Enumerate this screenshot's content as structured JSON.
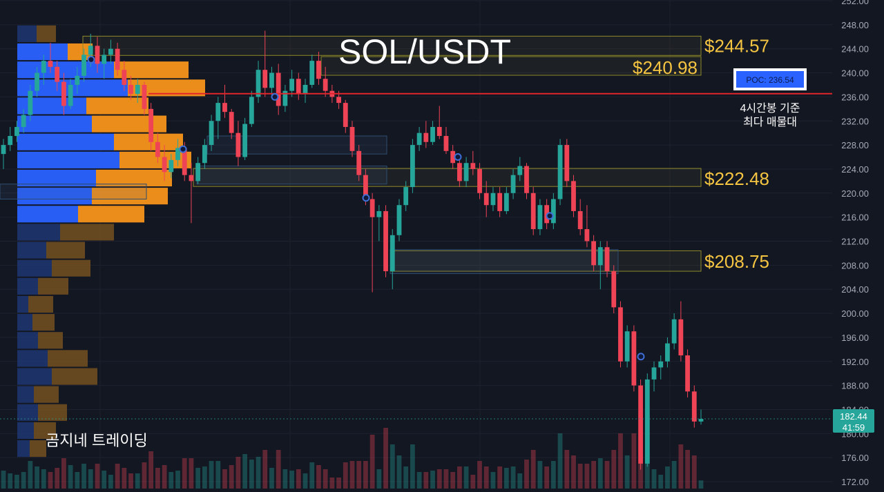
{
  "chart_data": {
    "type": "candlestick",
    "title": "SOL/USDT",
    "watermark": "곰지네 트레이딩",
    "y_axis": {
      "min": 172.0,
      "max": 252.0,
      "step": 4.0,
      "tick_labels": [
        "172.00",
        "176.00",
        "180.00",
        "184.00",
        "188.00",
        "192.00",
        "196.00",
        "200.00",
        "204.00",
        "208.00",
        "212.00",
        "216.00",
        "220.00",
        "224.00",
        "228.00",
        "232.00",
        "236.00",
        "240.00",
        "244.00",
        "248.00",
        "252.00"
      ]
    },
    "current_price": {
      "value": 182.44,
      "label": "182.44",
      "countdown": "41:59",
      "color": "#26a69a"
    },
    "poc": {
      "value": 236.54,
      "label": "POC: 236.54",
      "note": [
        "4시간봉 기준",
        "최다 매물대"
      ],
      "line_color": "#e0262b"
    },
    "levels": [
      {
        "label": "$244.57",
        "low": 242.9,
        "high": 246.1
      },
      {
        "label": "$240.98",
        "low": 239.6,
        "high": 242.7
      },
      {
        "label": "$222.48",
        "low": 221.1,
        "high": 224.1
      },
      {
        "label": "$208.75",
        "low": 207.0,
        "high": 210.4
      }
    ],
    "volume_profile": [
      {
        "price": 246.5,
        "up": 28,
        "down": 28
      },
      {
        "price": 243.5,
        "up": 73,
        "down": 36
      },
      {
        "price": 240.5,
        "up": 140,
        "down": 108
      },
      {
        "price": 237.5,
        "up": 160,
        "down": 112
      },
      {
        "price": 234.5,
        "up": 100,
        "down": 90
      },
      {
        "price": 231.5,
        "up": 108,
        "down": 108
      },
      {
        "price": 228.5,
        "up": 140,
        "down": 100
      },
      {
        "price": 225.5,
        "up": 148,
        "down": 104
      },
      {
        "price": 222.5,
        "up": 114,
        "down": 110
      },
      {
        "price": 219.5,
        "up": 108,
        "down": 110
      },
      {
        "price": 216.5,
        "up": 88,
        "down": 96
      },
      {
        "price": 213.5,
        "up": 62,
        "down": 78
      },
      {
        "price": 210.5,
        "up": 42,
        "down": 56
      },
      {
        "price": 207.5,
        "up": 50,
        "down": 56
      },
      {
        "price": 204.5,
        "up": 30,
        "down": 44
      },
      {
        "price": 201.5,
        "up": 16,
        "down": 36
      },
      {
        "price": 198.5,
        "up": 22,
        "down": 32
      },
      {
        "price": 195.5,
        "up": 30,
        "down": 36
      },
      {
        "price": 192.5,
        "up": 44,
        "down": 58
      },
      {
        "price": 189.5,
        "up": 50,
        "down": 66
      },
      {
        "price": 186.5,
        "up": 24,
        "down": 36
      },
      {
        "price": 183.5,
        "up": 30,
        "down": 42
      },
      {
        "price": 180.5,
        "up": 24,
        "down": 32
      },
      {
        "price": 177.5,
        "up": 18,
        "down": 24
      }
    ],
    "candles": [
      {
        "o": 226.5,
        "h": 229.0,
        "l": 224.0,
        "c": 228.0
      },
      {
        "o": 228.0,
        "h": 231.0,
        "l": 227.0,
        "c": 229.5
      },
      {
        "o": 229.5,
        "h": 232.0,
        "l": 228.5,
        "c": 231.0
      },
      {
        "o": 231.0,
        "h": 234.0,
        "l": 230.0,
        "c": 233.0
      },
      {
        "o": 233.0,
        "h": 238.0,
        "l": 232.0,
        "c": 237.0
      },
      {
        "o": 237.0,
        "h": 241.0,
        "l": 236.0,
        "c": 240.0
      },
      {
        "o": 240.0,
        "h": 243.0,
        "l": 238.0,
        "c": 242.0
      },
      {
        "o": 242.0,
        "h": 245.0,
        "l": 240.0,
        "c": 241.0
      },
      {
        "o": 241.0,
        "h": 242.0,
        "l": 237.0,
        "c": 238.5
      },
      {
        "o": 238.5,
        "h": 240.0,
        "l": 233.0,
        "c": 234.5
      },
      {
        "o": 234.5,
        "h": 239.0,
        "l": 234.0,
        "c": 238.0
      },
      {
        "o": 238.0,
        "h": 241.0,
        "l": 236.5,
        "c": 239.5
      },
      {
        "o": 239.5,
        "h": 244.0,
        "l": 238.5,
        "c": 243.0
      },
      {
        "o": 243.0,
        "h": 246.5,
        "l": 241.0,
        "c": 244.5
      },
      {
        "o": 244.5,
        "h": 246.0,
        "l": 240.0,
        "c": 241.5
      },
      {
        "o": 241.5,
        "h": 244.0,
        "l": 239.0,
        "c": 243.0
      },
      {
        "o": 243.0,
        "h": 245.5,
        "l": 241.5,
        "c": 244.0
      },
      {
        "o": 244.0,
        "h": 245.0,
        "l": 239.5,
        "c": 240.5
      },
      {
        "o": 240.5,
        "h": 242.0,
        "l": 237.0,
        "c": 238.0
      },
      {
        "o": 238.0,
        "h": 239.5,
        "l": 235.5,
        "c": 236.5
      },
      {
        "o": 236.5,
        "h": 239.0,
        "l": 235.0,
        "c": 238.0
      },
      {
        "o": 238.0,
        "h": 238.5,
        "l": 233.0,
        "c": 234.0
      },
      {
        "o": 234.0,
        "h": 235.0,
        "l": 227.0,
        "c": 228.5
      },
      {
        "o": 228.5,
        "h": 230.0,
        "l": 225.0,
        "c": 226.0
      },
      {
        "o": 226.0,
        "h": 228.0,
        "l": 222.0,
        "c": 223.5
      },
      {
        "o": 223.5,
        "h": 226.5,
        "l": 222.5,
        "c": 225.5
      },
      {
        "o": 225.5,
        "h": 229.0,
        "l": 224.5,
        "c": 227.5
      },
      {
        "o": 227.5,
        "h": 228.5,
        "l": 222.0,
        "c": 223.0
      },
      {
        "o": 223.0,
        "h": 225.0,
        "l": 215.0,
        "c": 222.0
      },
      {
        "o": 222.0,
        "h": 226.0,
        "l": 221.5,
        "c": 225.0
      },
      {
        "o": 225.0,
        "h": 229.0,
        "l": 224.0,
        "c": 228.0
      },
      {
        "o": 228.0,
        "h": 233.0,
        "l": 227.0,
        "c": 232.0
      },
      {
        "o": 232.0,
        "h": 236.0,
        "l": 229.0,
        "c": 235.0
      },
      {
        "o": 235.0,
        "h": 238.0,
        "l": 232.5,
        "c": 233.5
      },
      {
        "o": 233.5,
        "h": 234.0,
        "l": 229.0,
        "c": 230.0
      },
      {
        "o": 230.0,
        "h": 232.0,
        "l": 224.5,
        "c": 226.0
      },
      {
        "o": 226.0,
        "h": 232.5,
        "l": 225.5,
        "c": 231.5
      },
      {
        "o": 231.5,
        "h": 237.0,
        "l": 231.0,
        "c": 236.0
      },
      {
        "o": 236.0,
        "h": 242.0,
        "l": 235.0,
        "c": 240.5
      },
      {
        "o": 240.5,
        "h": 247.0,
        "l": 236.0,
        "c": 237.5
      },
      {
        "o": 237.5,
        "h": 241.0,
        "l": 236.0,
        "c": 240.0
      },
      {
        "o": 240.0,
        "h": 241.5,
        "l": 233.0,
        "c": 234.5
      },
      {
        "o": 234.5,
        "h": 238.0,
        "l": 233.5,
        "c": 237.0
      },
      {
        "o": 237.0,
        "h": 240.5,
        "l": 236.0,
        "c": 239.0
      },
      {
        "o": 239.0,
        "h": 240.0,
        "l": 235.5,
        "c": 236.5
      },
      {
        "o": 236.5,
        "h": 239.0,
        "l": 235.0,
        "c": 238.0
      },
      {
        "o": 238.0,
        "h": 243.0,
        "l": 237.5,
        "c": 242.0
      },
      {
        "o": 242.0,
        "h": 243.5,
        "l": 238.0,
        "c": 239.0
      },
      {
        "o": 239.0,
        "h": 241.0,
        "l": 236.0,
        "c": 237.0
      },
      {
        "o": 237.0,
        "h": 238.0,
        "l": 235.0,
        "c": 236.0
      },
      {
        "o": 236.0,
        "h": 237.0,
        "l": 234.0,
        "c": 235.0
      },
      {
        "o": 235.0,
        "h": 235.5,
        "l": 230.0,
        "c": 231.0
      },
      {
        "o": 231.0,
        "h": 232.0,
        "l": 226.0,
        "c": 227.0
      },
      {
        "o": 227.0,
        "h": 228.0,
        "l": 222.0,
        "c": 223.0
      },
      {
        "o": 223.0,
        "h": 224.0,
        "l": 218.0,
        "c": 219.0
      },
      {
        "o": 219.0,
        "h": 220.0,
        "l": 203.5,
        "c": 216.0
      },
      {
        "o": 216.0,
        "h": 218.0,
        "l": 212.0,
        "c": 217.0
      },
      {
        "o": 217.0,
        "h": 218.0,
        "l": 206.0,
        "c": 207.0
      },
      {
        "o": 207.0,
        "h": 214.0,
        "l": 204.0,
        "c": 213.0
      },
      {
        "o": 213.0,
        "h": 219.0,
        "l": 212.0,
        "c": 218.0
      },
      {
        "o": 218.0,
        "h": 222.0,
        "l": 217.0,
        "c": 221.0
      },
      {
        "o": 221.0,
        "h": 229.0,
        "l": 220.0,
        "c": 228.0
      },
      {
        "o": 228.0,
        "h": 231.0,
        "l": 227.0,
        "c": 230.0
      },
      {
        "o": 230.0,
        "h": 232.0,
        "l": 227.5,
        "c": 228.5
      },
      {
        "o": 228.5,
        "h": 232.0,
        "l": 228.0,
        "c": 231.0
      },
      {
        "o": 231.0,
        "h": 234.5,
        "l": 229.0,
        "c": 229.5
      },
      {
        "o": 229.5,
        "h": 231.0,
        "l": 226.5,
        "c": 227.0
      },
      {
        "o": 227.0,
        "h": 228.0,
        "l": 224.0,
        "c": 225.0
      },
      {
        "o": 225.0,
        "h": 226.0,
        "l": 221.0,
        "c": 222.0
      },
      {
        "o": 222.0,
        "h": 226.0,
        "l": 221.0,
        "c": 225.0
      },
      {
        "o": 225.0,
        "h": 227.0,
        "l": 223.0,
        "c": 224.0
      },
      {
        "o": 224.0,
        "h": 225.0,
        "l": 219.0,
        "c": 220.0
      },
      {
        "o": 220.0,
        "h": 222.0,
        "l": 216.0,
        "c": 218.0
      },
      {
        "o": 218.0,
        "h": 221.0,
        "l": 217.0,
        "c": 220.0
      },
      {
        "o": 220.0,
        "h": 221.0,
        "l": 216.0,
        "c": 217.0
      },
      {
        "o": 217.0,
        "h": 221.0,
        "l": 216.5,
        "c": 220.0
      },
      {
        "o": 220.0,
        "h": 224.0,
        "l": 219.0,
        "c": 223.0
      },
      {
        "o": 223.0,
        "h": 226.0,
        "l": 222.0,
        "c": 224.5
      },
      {
        "o": 224.5,
        "h": 225.0,
        "l": 219.0,
        "c": 220.0
      },
      {
        "o": 220.0,
        "h": 221.0,
        "l": 213.0,
        "c": 214.0
      },
      {
        "o": 214.0,
        "h": 219.0,
        "l": 213.0,
        "c": 218.0
      },
      {
        "o": 218.0,
        "h": 219.0,
        "l": 214.0,
        "c": 215.0
      },
      {
        "o": 215.0,
        "h": 220.0,
        "l": 214.0,
        "c": 219.0
      },
      {
        "o": 219.0,
        "h": 229.0,
        "l": 218.0,
        "c": 228.0
      },
      {
        "o": 228.0,
        "h": 229.0,
        "l": 221.0,
        "c": 222.0
      },
      {
        "o": 222.0,
        "h": 223.0,
        "l": 216.0,
        "c": 217.0
      },
      {
        "o": 217.0,
        "h": 219.0,
        "l": 213.0,
        "c": 214.0
      },
      {
        "o": 214.0,
        "h": 218.0,
        "l": 211.0,
        "c": 212.0
      },
      {
        "o": 212.0,
        "h": 213.0,
        "l": 207.0,
        "c": 208.0
      },
      {
        "o": 208.0,
        "h": 212.0,
        "l": 204.0,
        "c": 211.0
      },
      {
        "o": 211.0,
        "h": 212.0,
        "l": 206.0,
        "c": 207.0
      },
      {
        "o": 207.0,
        "h": 208.0,
        "l": 200.0,
        "c": 201.0
      },
      {
        "o": 201.0,
        "h": 202.0,
        "l": 191.0,
        "c": 192.0
      },
      {
        "o": 192.0,
        "h": 198.0,
        "l": 191.0,
        "c": 197.0
      },
      {
        "o": 197.0,
        "h": 198.0,
        "l": 187.0,
        "c": 188.0
      },
      {
        "o": 188.0,
        "h": 189.0,
        "l": 174.0,
        "c": 175.0
      },
      {
        "o": 175.0,
        "h": 190.0,
        "l": 174.5,
        "c": 189.0
      },
      {
        "o": 189.0,
        "h": 192.0,
        "l": 187.0,
        "c": 191.0
      },
      {
        "o": 191.0,
        "h": 193.0,
        "l": 189.0,
        "c": 192.0
      },
      {
        "o": 192.0,
        "h": 196.0,
        "l": 191.0,
        "c": 195.0
      },
      {
        "o": 195.0,
        "h": 200.0,
        "l": 194.0,
        "c": 199.0
      },
      {
        "o": 199.0,
        "h": 202.0,
        "l": 192.0,
        "c": 193.0
      },
      {
        "o": 193.0,
        "h": 194.0,
        "l": 186.0,
        "c": 187.0
      },
      {
        "o": 187.0,
        "h": 188.0,
        "l": 181.0,
        "c": 182.0
      },
      {
        "o": 182.0,
        "h": 184.0,
        "l": 181.5,
        "c": 182.44
      }
    ]
  }
}
